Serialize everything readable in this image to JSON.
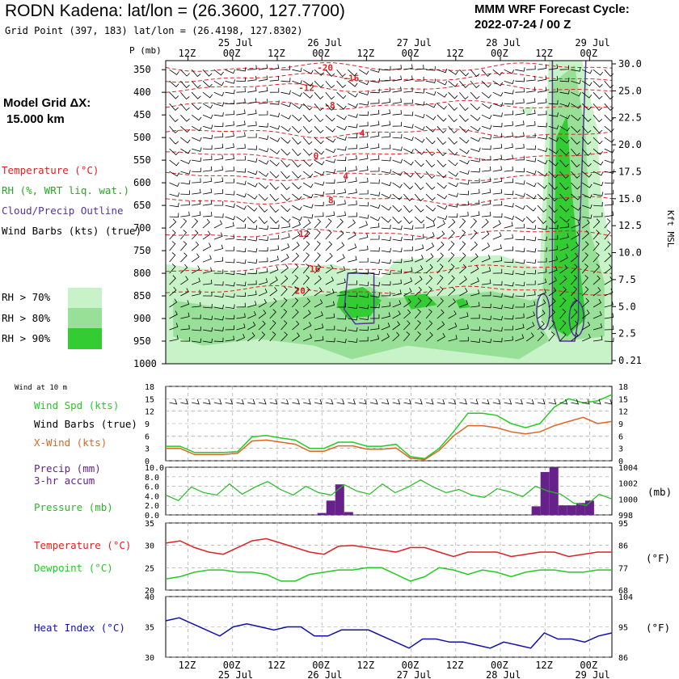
{
  "header": {
    "title": "RODN Kadena:  lat/lon = (26.3600, 127.7700)",
    "grid_point": "Grid Point (397, 183) lat/lon = (26.4198, 127.8302)",
    "cycle_line1": "MMM WRF Forecast Cycle:",
    "cycle_line2": "2022-07-24 / 00  Z",
    "model_grid_line1": "Model Grid ΔX:",
    "model_grid_line2": "15.000 km"
  },
  "legend": {
    "temperature": "Temperature (°C)",
    "rh": "RH (%, WRT liq. wat.)",
    "cloud": "Cloud/Precip Outline",
    "barbs": "Wind Barbs (kts) (true)",
    "rh70": "RH > 70%",
    "rh80": "RH > 80%",
    "rh90": "RH > 90%"
  },
  "time_axis": {
    "ticks": [
      "12Z",
      "00Z",
      "12Z",
      "00Z",
      "12Z",
      "00Z",
      "12Z",
      "00Z",
      "12Z",
      "00Z"
    ],
    "dates": [
      "25 Jul",
      "26 Jul",
      "27 Jul",
      "28 Jul",
      "29 Jul"
    ],
    "hours_start": 0,
    "hours_end": 120
  },
  "colors": {
    "temperature": "#dd2222",
    "rh70": "#c8f2c8",
    "rh80": "#98e098",
    "rh90": "#33cc33",
    "cloud": "#553399",
    "wind_speed": "#22cc22",
    "crosswind": "#dd6622",
    "precip": "#66228a",
    "pressure": "#22bb22",
    "dewpoint": "#22cc22",
    "heat_index": "#1111aa"
  },
  "chart_data": [
    {
      "type": "heatmap",
      "name_label": "P (mb)",
      "ylabel_right": "Kft MSL",
      "pressure_ticks": [
        "350",
        "400",
        "450",
        "500",
        "550",
        "600",
        "650",
        "700",
        "750",
        "800",
        "850",
        "900",
        "950",
        "1000"
      ],
      "height_ticks": [
        "30.0",
        "25.0",
        "22.5",
        "20.0",
        "17.5",
        "15.0",
        "12.5",
        "10.0",
        "7.5",
        "5.0",
        "2.5",
        "0.21"
      ],
      "temperature_contours": [
        {
          "label": "-20",
          "p": 345,
          "t": 42
        },
        {
          "label": "-16",
          "p": 368,
          "t": 49
        },
        {
          "label": "-12",
          "p": 390,
          "t": 37
        },
        {
          "label": "-8",
          "p": 428,
          "t": 44
        },
        {
          "label": "-4",
          "p": 490,
          "t": 52
        },
        {
          "label": "0",
          "p": 540,
          "t": 41
        },
        {
          "label": "4",
          "p": 585,
          "t": 49
        },
        {
          "label": "8",
          "p": 638,
          "t": 45
        },
        {
          "label": "12",
          "p": 712,
          "t": 37
        },
        {
          "label": "16",
          "p": 790,
          "t": 40
        },
        {
          "label": "20",
          "p": 838,
          "t": 36
        }
      ]
    },
    {
      "type": "line",
      "inset_label": "Wind at 10 m",
      "ylim": [
        0,
        18
      ],
      "yticks": [
        "0",
        "3",
        "6",
        "9",
        "12",
        "15",
        "18"
      ],
      "series": [
        {
          "name": "Wind Spd (kts)",
          "values": [
            3.5,
            3.5,
            2,
            2,
            2,
            2.2,
            5.8,
            6.1,
            5.5,
            5,
            3,
            3,
            4.5,
            4.5,
            3.5,
            3.5,
            4,
            1,
            0.5,
            3,
            7,
            11.5,
            11.5,
            11,
            9,
            8,
            9,
            13,
            15,
            14,
            14.5,
            16
          ]
        },
        {
          "name": "X-Wind (kts)",
          "values": [
            3,
            3,
            1.5,
            1.5,
            1.5,
            1.8,
            4.8,
            5,
            4.5,
            4,
            2.3,
            2.3,
            3.6,
            3.6,
            2.8,
            2.8,
            3.1,
            0.6,
            0.3,
            2.5,
            6,
            8.5,
            8.5,
            8,
            7,
            6.5,
            7,
            8.5,
            9.5,
            10.5,
            9,
            9.5
          ]
        }
      ],
      "barbs_label": "Wind Barbs (true)"
    },
    {
      "type": "bar",
      "precip_label": "Precip (mm)",
      "precip_sub": "3-hr accum",
      "pressure_label": "Pressure (mb)",
      "unit_right": "(mb)",
      "ylim": [
        0,
        10
      ],
      "yticks": [
        "0.0",
        "2.0",
        "4.0",
        "6.0",
        "8.0",
        "10.0"
      ],
      "right_ticks": [
        "998",
        "1000",
        "1002",
        "1004"
      ],
      "precip": [
        0,
        0,
        0,
        0,
        0,
        0,
        0,
        0,
        0,
        0,
        0,
        0,
        0,
        0,
        0,
        0,
        0,
        0.4,
        3,
        6.4,
        0.6,
        0,
        0,
        0,
        0,
        0,
        0,
        0,
        0,
        0,
        0,
        0,
        0,
        0,
        0,
        0,
        0,
        0,
        0,
        0,
        0,
        1.8,
        9,
        10,
        2,
        2,
        2.5,
        3,
        0,
        0
      ],
      "pressure_mb": [
        1000.5,
        999.8,
        1001.5,
        1000.8,
        1000.5,
        1001.9,
        1000.6,
        1001.5,
        1002.2,
        1001.2,
        1000.5,
        1001.6,
        1000.8,
        1000.5,
        1001.8,
        1001,
        1000.6,
        1001.9,
        1000.8,
        1001.5,
        1002.4,
        1001.5,
        1000.8,
        1001.2,
        1000.5,
        1000.2,
        1001.3,
        1000.9,
        1000.3,
        1001.6,
        1001,
        1000.6,
        999.5,
        999.2,
        1000.6,
        1000
      ]
    },
    {
      "type": "line",
      "ylim": [
        20,
        35
      ],
      "yticks": [
        "20",
        "25",
        "30",
        "35"
      ],
      "right_ticks": [
        "68",
        "77",
        "86",
        "95"
      ],
      "unit_right": "(°F)",
      "series": [
        {
          "name": "Temperature (°C)",
          "values": [
            30.5,
            31,
            29.5,
            28.5,
            28,
            29.5,
            31,
            31.5,
            30.5,
            29.5,
            28.5,
            28,
            29.8,
            30,
            29.5,
            29,
            28.5,
            29.5,
            29.5,
            28.5,
            27.5,
            28.5,
            28.5,
            28.5,
            27.5,
            28,
            28.5,
            28.5,
            27.5,
            28,
            28.5,
            28.5
          ]
        },
        {
          "name": "Dewpoint (°C)",
          "values": [
            22.5,
            23,
            24,
            24.5,
            24.5,
            24,
            24,
            23.5,
            22,
            22,
            23.5,
            24,
            24.5,
            24.5,
            25,
            25,
            23.5,
            22,
            23,
            25,
            24.5,
            23.5,
            24.5,
            24,
            23,
            24,
            24.5,
            24.5,
            24,
            24,
            24.5,
            24.5
          ]
        }
      ]
    },
    {
      "type": "line",
      "ylim": [
        30,
        40
      ],
      "yticks": [
        "30",
        "35",
        "40"
      ],
      "right_ticks": [
        "86",
        "95",
        "104"
      ],
      "unit_right": "(°F)",
      "series": [
        {
          "name": "Heat Index (°C)",
          "values": [
            36,
            36.5,
            35.5,
            34.5,
            33.5,
            35,
            35.5,
            35,
            34.5,
            35,
            35,
            33.5,
            33.5,
            34.5,
            34.5,
            34.5,
            33.5,
            32.5,
            31.5,
            33,
            33,
            32.5,
            32.5,
            32,
            31.5,
            32.5,
            32,
            31.5,
            34,
            33,
            33,
            32.5,
            33.5,
            34
          ]
        }
      ]
    }
  ]
}
